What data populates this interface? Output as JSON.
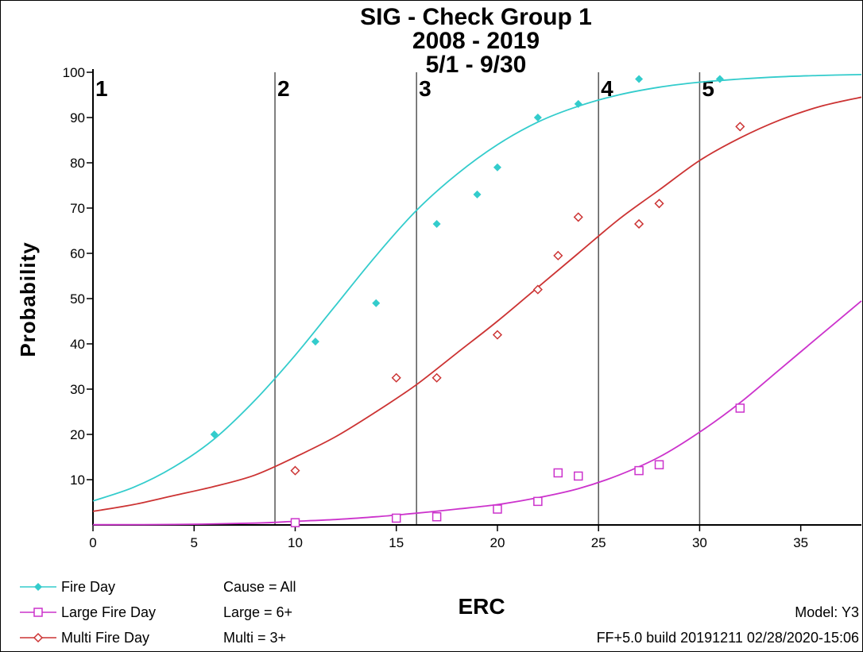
{
  "chart_data": {
    "type": "scatter",
    "title_lines": [
      "SIG - Check Group 1",
      "2008 - 2019",
      "5/1 - 9/30"
    ],
    "xlabel": "ERC",
    "ylabel": "Probability",
    "xlim": [
      0,
      38
    ],
    "ylim": [
      0,
      100
    ],
    "x_ticks": [
      0,
      5,
      10,
      15,
      20,
      25,
      30,
      35
    ],
    "x_tick_labels": [
      "0",
      "5",
      "10",
      "15",
      "20",
      "25",
      "30",
      "35"
    ],
    "y_ticks": [
      10,
      20,
      30,
      40,
      50,
      60,
      70,
      80,
      90,
      100
    ],
    "y_tick_labels": [
      "10",
      "20",
      "30",
      "40",
      "50",
      "60",
      "70",
      "80",
      "90",
      "100"
    ],
    "grid": false,
    "breakpoints": [
      {
        "label": "1",
        "x": 0
      },
      {
        "label": "2",
        "x": 9
      },
      {
        "label": "3",
        "x": 16
      },
      {
        "label": "4",
        "x": 25
      },
      {
        "label": "5",
        "x": 30
      }
    ],
    "series": [
      {
        "name": "Fire Day",
        "color": "#33cccc",
        "marker": "filled-diamond",
        "points": [
          [
            6,
            20
          ],
          [
            11,
            40.5
          ],
          [
            14,
            49
          ],
          [
            17,
            66.5
          ],
          [
            19,
            73
          ],
          [
            20,
            79
          ],
          [
            22,
            90
          ],
          [
            24,
            93
          ],
          [
            27,
            98.5
          ],
          [
            31,
            98.5
          ]
        ],
        "curve": [
          [
            0,
            5.3
          ],
          [
            2,
            8.3
          ],
          [
            4,
            12.8
          ],
          [
            6,
            19
          ],
          [
            8,
            27.5
          ],
          [
            10,
            37.5
          ],
          [
            12,
            48.5
          ],
          [
            14,
            59.5
          ],
          [
            16,
            69.5
          ],
          [
            18,
            77.5
          ],
          [
            20,
            84
          ],
          [
            22,
            89
          ],
          [
            24,
            92.5
          ],
          [
            26,
            95
          ],
          [
            28,
            96.7
          ],
          [
            30,
            97.8
          ],
          [
            32,
            98.5
          ],
          [
            34,
            99
          ],
          [
            36,
            99.3
          ],
          [
            38,
            99.5
          ]
        ]
      },
      {
        "name": "Large Fire Day",
        "color": "#cc33cc",
        "marker": "open-square",
        "points": [
          [
            10,
            0.5
          ],
          [
            15,
            1.5
          ],
          [
            17,
            1.8
          ],
          [
            20,
            3.5
          ],
          [
            22,
            5.2
          ],
          [
            23,
            11.5
          ],
          [
            24,
            10.8
          ],
          [
            27,
            12
          ],
          [
            28,
            13.3
          ],
          [
            32,
            25.8
          ]
        ],
        "curve": [
          [
            0,
            0.05
          ],
          [
            4,
            0.1
          ],
          [
            8,
            0.4
          ],
          [
            10,
            0.8
          ],
          [
            12,
            1.2
          ],
          [
            14,
            1.8
          ],
          [
            16,
            2.6
          ],
          [
            18,
            3.5
          ],
          [
            20,
            4.5
          ],
          [
            22,
            6
          ],
          [
            24,
            8
          ],
          [
            26,
            11
          ],
          [
            28,
            15
          ],
          [
            30,
            20.5
          ],
          [
            32,
            27
          ],
          [
            34,
            34.5
          ],
          [
            36,
            42
          ],
          [
            38,
            49.5
          ]
        ]
      },
      {
        "name": "Multi Fire Day",
        "color": "#cc3333",
        "marker": "open-diamond",
        "points": [
          [
            10,
            12
          ],
          [
            15,
            32.5
          ],
          [
            17,
            32.5
          ],
          [
            20,
            42
          ],
          [
            22,
            52
          ],
          [
            23,
            59.5
          ],
          [
            24,
            68
          ],
          [
            27,
            66.5
          ],
          [
            28,
            71
          ],
          [
            32,
            88
          ]
        ],
        "curve": [
          [
            0,
            3
          ],
          [
            2,
            4.5
          ],
          [
            4,
            6.5
          ],
          [
            6,
            8.5
          ],
          [
            8,
            11
          ],
          [
            10,
            15
          ],
          [
            12,
            19.5
          ],
          [
            14,
            25
          ],
          [
            16,
            31
          ],
          [
            18,
            38
          ],
          [
            20,
            45
          ],
          [
            22,
            52.5
          ],
          [
            24,
            60
          ],
          [
            26,
            67.5
          ],
          [
            28,
            74
          ],
          [
            30,
            80.5
          ],
          [
            32,
            85.5
          ],
          [
            34,
            89.5
          ],
          [
            36,
            92.5
          ],
          [
            38,
            94.5
          ]
        ]
      }
    ]
  },
  "legend": [
    {
      "label": "Fire Day",
      "color": "#33cccc",
      "marker": "filled-diamond"
    },
    {
      "label": "Large Fire Day",
      "color": "#cc33cc",
      "marker": "open-square"
    },
    {
      "label": "Multi Fire Day",
      "color": "#cc3333",
      "marker": "open-diamond"
    }
  ],
  "criteria": {
    "cause": "Cause = All",
    "large": "Large = 6+",
    "multi": "Multi = 3+"
  },
  "model": "Model: Y3",
  "build": "FF+5.0 build 20191211 02/28/2020-15:06"
}
